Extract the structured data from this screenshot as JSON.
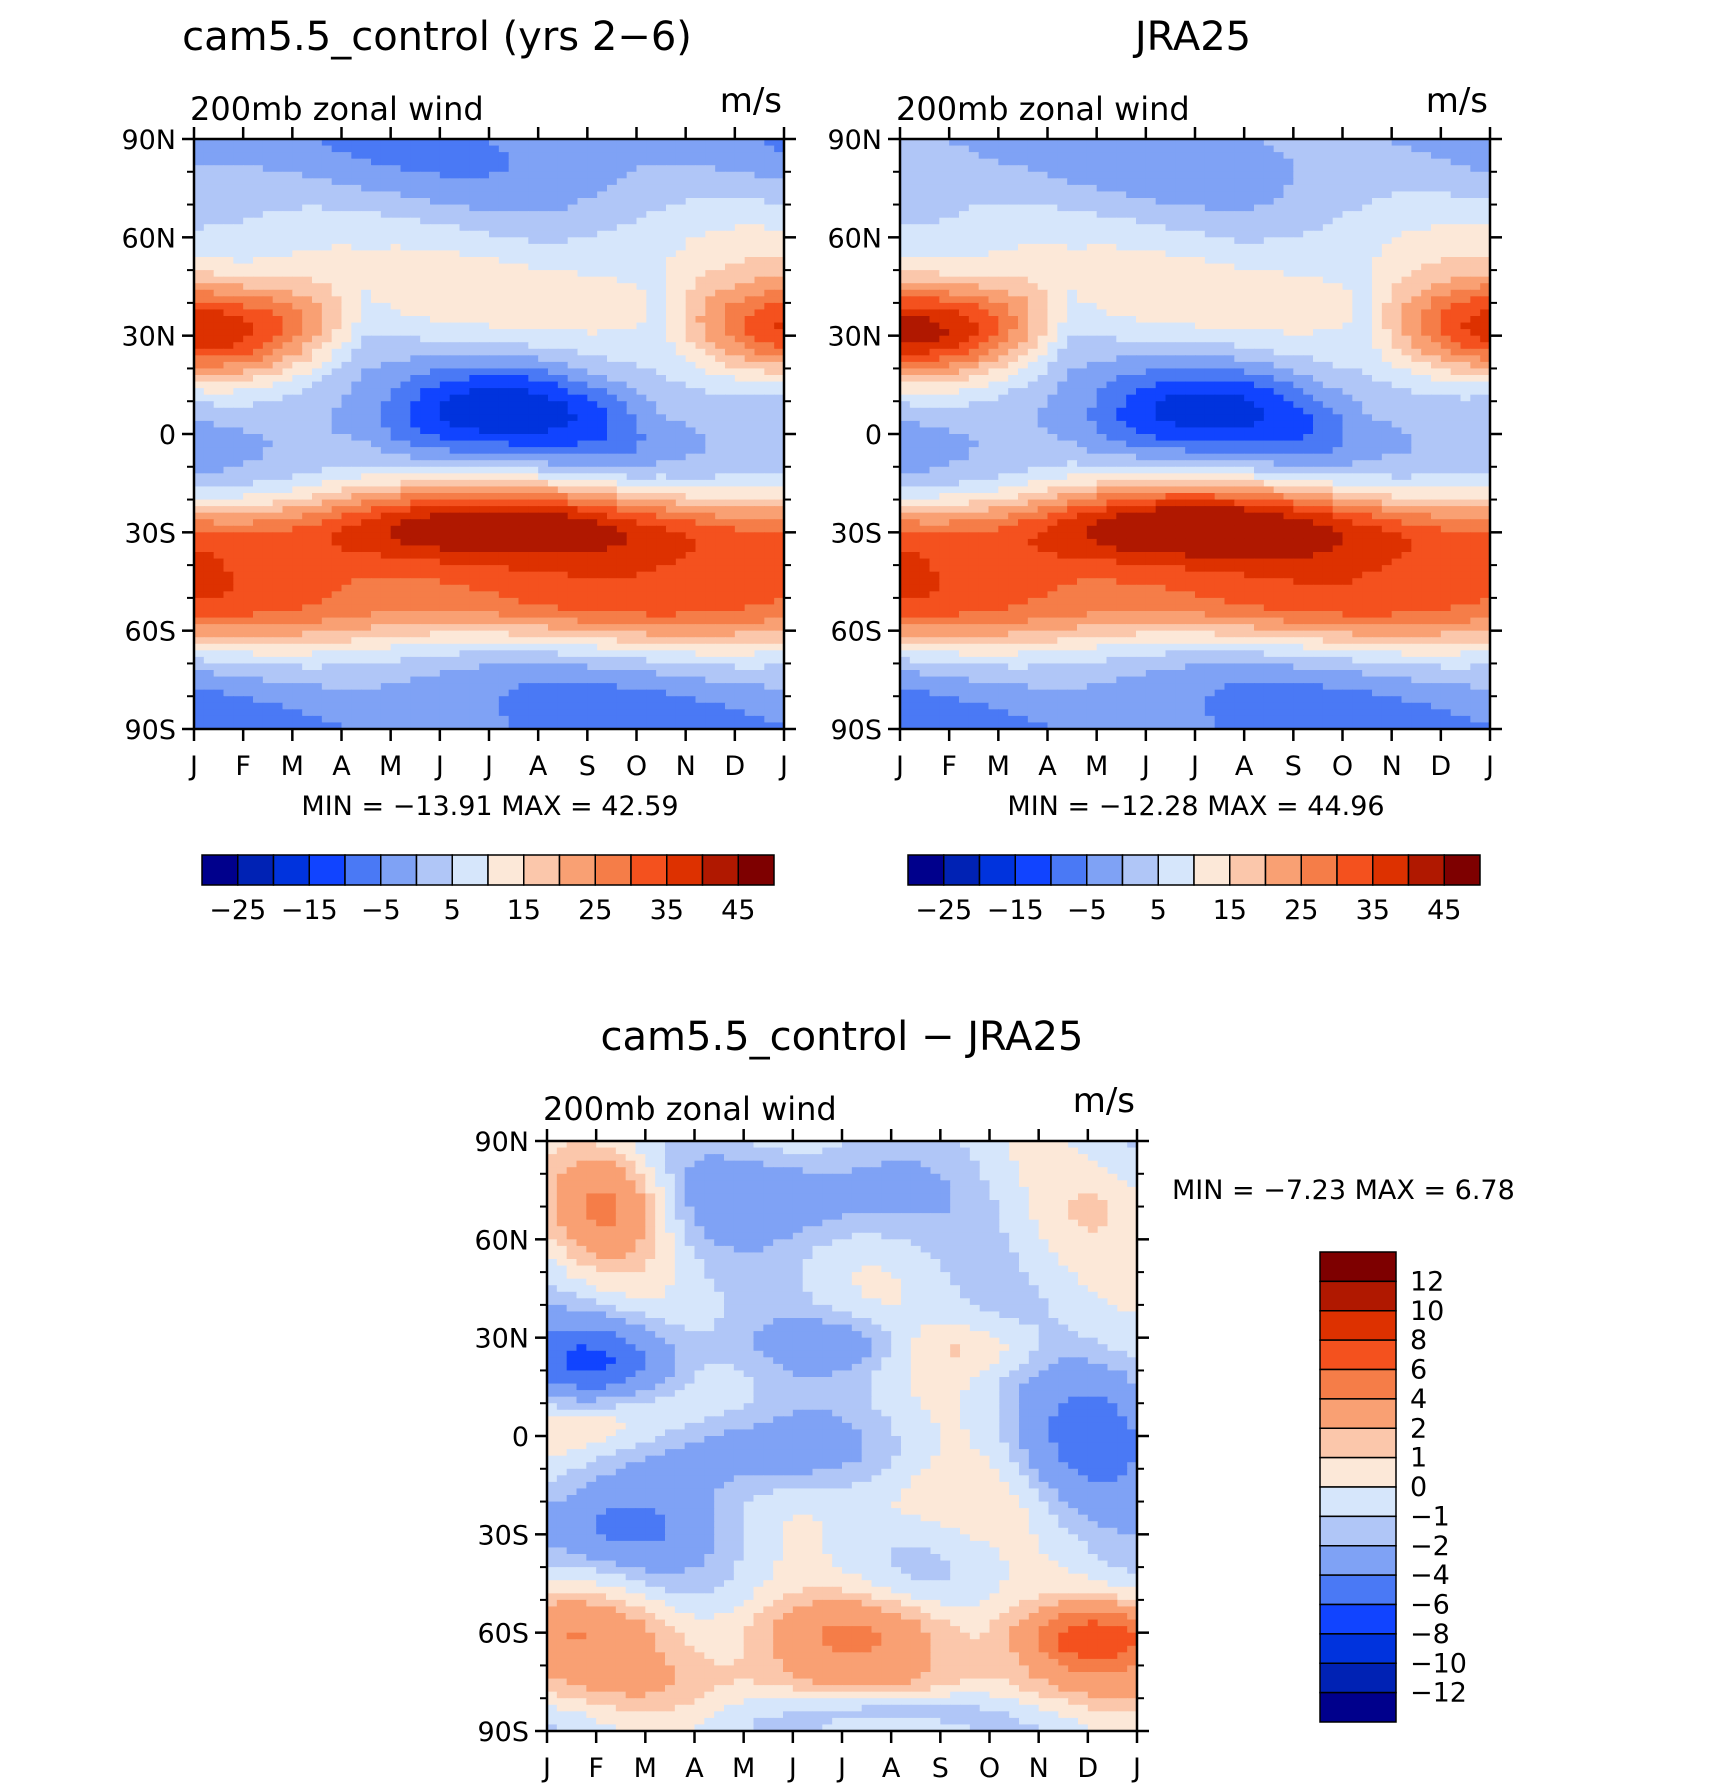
{
  "chart_data": [
    {
      "type": "heatmap",
      "title": "cam5.5_control (yrs 2−6)",
      "subtitle_left": "200mb  zonal  wind",
      "subtitle_right": "m/s",
      "x_tick_labels": [
        "J",
        "F",
        "M",
        "A",
        "M",
        "J",
        "J",
        "A",
        "S",
        "O",
        "N",
        "D",
        "J"
      ],
      "y_tick_labels": [
        "90N",
        "60N",
        "30N",
        "0",
        "30S",
        "60S",
        "90S"
      ],
      "ylim": [
        -90,
        90
      ],
      "stats": {
        "min_label": "MIN",
        "min": "−13.91",
        "max_label": "MAX",
        "max": "42.59"
      },
      "levels": [
        -30,
        -25,
        -20,
        -15,
        -10,
        -5,
        0,
        5,
        10,
        15,
        20,
        25,
        30,
        35,
        40,
        45
      ],
      "colorbar_labels": [
        "−25",
        "−15",
        "−5",
        "5",
        "15",
        "25",
        "35",
        "45"
      ],
      "colors": [
        "#00008c",
        "#0022b4",
        "#0033dd",
        "#1144ff",
        "#4a79f5",
        "#7fa2f5",
        "#b0c6f7",
        "#d6e6fb",
        "#fce8d8",
        "#fbc7ab",
        "#f9a073",
        "#f57d48",
        "#f4511e",
        "#dd3100",
        "#b01800",
        "#7e0000"
      ],
      "fields": {
        "sh_jet_peak": 42,
        "nh_jet_jan": 38,
        "equatorial_easterly_min": -13.9,
        "polar_north_min": -4
      }
    },
    {
      "type": "heatmap",
      "title": "JRA25",
      "subtitle_left": "200mb  zonal  wind",
      "subtitle_right": "m/s",
      "x_tick_labels": [
        "J",
        "F",
        "M",
        "A",
        "M",
        "J",
        "J",
        "A",
        "S",
        "O",
        "N",
        "D",
        "J"
      ],
      "y_tick_labels": [
        "90N",
        "60N",
        "30N",
        "0",
        "30S",
        "60S",
        "90S"
      ],
      "ylim": [
        -90,
        90
      ],
      "stats": {
        "min_label": "MIN",
        "min": "−12.28",
        "max_label": "MAX",
        "max": "44.96"
      },
      "levels": [
        -30,
        -25,
        -20,
        -15,
        -10,
        -5,
        0,
        5,
        10,
        15,
        20,
        25,
        30,
        35,
        40,
        45
      ],
      "colorbar_labels": [
        "−25",
        "−15",
        "−5",
        "5",
        "15",
        "25",
        "35",
        "45"
      ],
      "colors": [
        "#00008c",
        "#0022b4",
        "#0033dd",
        "#1144ff",
        "#4a79f5",
        "#7fa2f5",
        "#b0c6f7",
        "#d6e6fb",
        "#fce8d8",
        "#fbc7ab",
        "#f9a073",
        "#f57d48",
        "#f4511e",
        "#dd3100",
        "#b01800",
        "#7e0000"
      ],
      "fields": {
        "sh_jet_peak": 44,
        "nh_jet_jan": 41,
        "equatorial_easterly_min": -12.3,
        "polar_north_min": -2
      }
    },
    {
      "type": "heatmap",
      "title": "cam5.5_control − JRA25",
      "subtitle_left": "200mb  zonal  wind",
      "subtitle_right": "m/s",
      "x_tick_labels": [
        "J",
        "F",
        "M",
        "A",
        "M",
        "J",
        "J",
        "A",
        "S",
        "O",
        "N",
        "D",
        "J"
      ],
      "y_tick_labels": [
        "90N",
        "60N",
        "30N",
        "0",
        "30S",
        "60S",
        "90S"
      ],
      "ylim": [
        -90,
        90
      ],
      "stats": {
        "min_label": "MIN",
        "min": "−7.23",
        "max_label": "MAX",
        "max": "6.78"
      },
      "levels": [
        -14,
        -12,
        -10,
        -8,
        -6,
        -4,
        -2,
        -1,
        0,
        1,
        2,
        4,
        6,
        8,
        10,
        12,
        14
      ],
      "colorbar_labels": [
        "12",
        "10",
        "8",
        "6",
        "4",
        "2",
        "1",
        "0",
        "−1",
        "−2",
        "−4",
        "−6",
        "−8",
        "−10",
        "−12"
      ],
      "colors": [
        "#00008c",
        "#0022b4",
        "#0033dd",
        "#1144ff",
        "#4a79f5",
        "#7fa2f5",
        "#b0c6f7",
        "#d6e6fb",
        "#fce8d8",
        "#fbc7ab",
        "#f9a073",
        "#f57d48",
        "#f4511e",
        "#dd3100",
        "#b01800",
        "#7e0000"
      ]
    }
  ]
}
